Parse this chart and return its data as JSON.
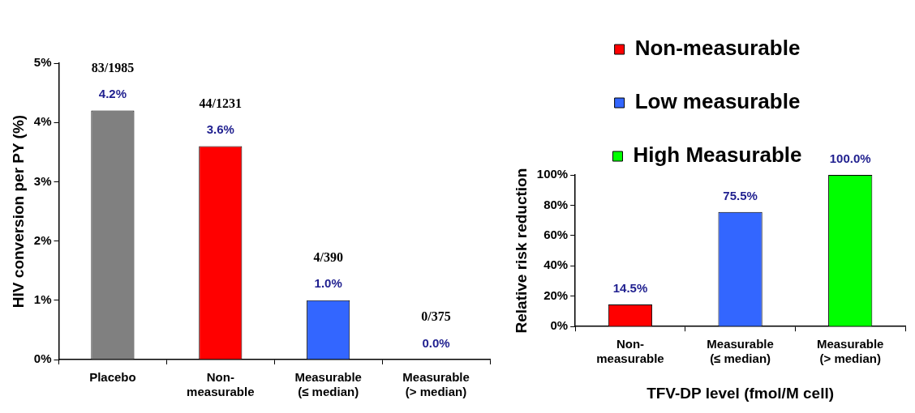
{
  "chart_data": [
    {
      "type": "bar",
      "ylabel": "HIV conversion per PY (%)",
      "categories": [
        "Placebo",
        "Non-measurable",
        "Measurable (≤ median)",
        "Measurable (> median)"
      ],
      "values": [
        4.2,
        3.6,
        1.0,
        0.0
      ],
      "colors": [
        "#808080",
        "#ff0000",
        "#3366ff",
        "#00ff00"
      ],
      "value_labels": [
        "4.2%",
        "3.6%",
        "1.0%",
        "0.0%"
      ],
      "ylim": [
        0,
        5
      ],
      "yticks": [
        {
          "value": 0,
          "label": "0%"
        },
        {
          "value": 1,
          "label": "1%"
        },
        {
          "value": 2,
          "label": "2%"
        },
        {
          "value": 3,
          "label": "3%"
        },
        {
          "value": 4,
          "label": "4%"
        },
        {
          "value": 5,
          "label": "5%"
        }
      ],
      "annotations": [
        {
          "text": "83/1985",
          "x": "Placebo",
          "y": 4.2
        },
        {
          "text": "44/1231",
          "x": "Non-measurable",
          "y": 3.6
        },
        {
          "text": "4/390",
          "x": "Measurable (≤ median)",
          "y": 1.0
        },
        {
          "text": "0/375",
          "x": "Measurable (> median)",
          "y": 0.0
        }
      ]
    },
    {
      "type": "bar",
      "ylabel": "Relative risk reduction",
      "xlabel": "TFV-DP level (fmol/M cell)",
      "categories": [
        "Non-measurable",
        "Measurable (≤ median)",
        "Measurable (> median)"
      ],
      "series": [
        {
          "name": "Non-measurable",
          "color": "#ff0000",
          "values": [
            14.5,
            null,
            null
          ],
          "value_labels": [
            "14.5%",
            null,
            null
          ]
        },
        {
          "name": "Low measurable",
          "color": "#3366ff",
          "values": [
            null,
            75.5,
            null
          ],
          "value_labels": [
            null,
            "75.5%",
            null
          ]
        },
        {
          "name": "High Measurable",
          "color": "#00ff00",
          "values": [
            null,
            null,
            100.0
          ],
          "value_labels": [
            null,
            null,
            "100.0%"
          ]
        }
      ],
      "legend": "top",
      "ylim": [
        0,
        100
      ],
      "yticks": [
        {
          "value": 0,
          "label": "0%"
        },
        {
          "value": 20,
          "label": "20%"
        },
        {
          "value": 40,
          "label": "40%"
        },
        {
          "value": 60,
          "label": "60%"
        },
        {
          "value": 80,
          "label": "80%"
        },
        {
          "value": 100,
          "label": "100%"
        }
      ]
    }
  ]
}
